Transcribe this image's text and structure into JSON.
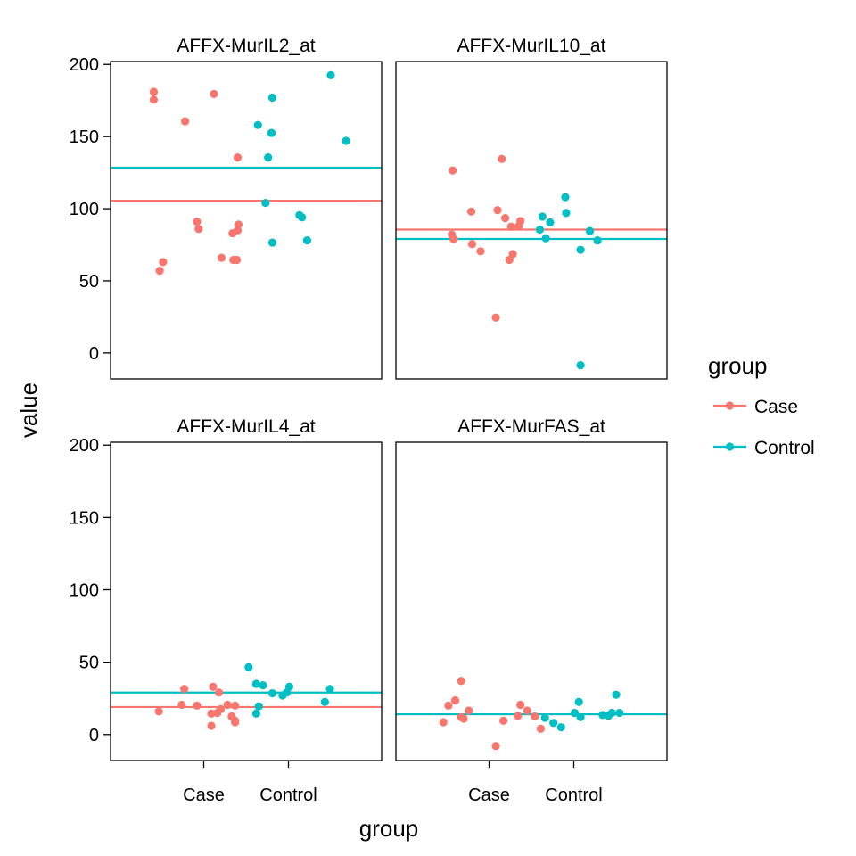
{
  "chart_data": {
    "type": "scatter",
    "xlabel": "group",
    "ylabel": "value",
    "x_categories": [
      "Case",
      "Control"
    ],
    "yticks": [
      0,
      50,
      100,
      150,
      200
    ],
    "ylim": [
      -18,
      202
    ],
    "legend": {
      "title": "group",
      "placement": "right",
      "entries": [
        {
          "name": "Case",
          "color": "#F8766D"
        },
        {
          "name": "Control",
          "color": "#00BFC4"
        }
      ]
    },
    "panels": [
      {
        "title": "AFFX-MurIL2_at",
        "hlines": {
          "Case": 105.5,
          "Control": 128.5
        },
        "points": [
          {
            "group": "Case",
            "x": 0.91,
            "y": 181
          },
          {
            "group": "Case",
            "x": 0.91,
            "y": 175.5
          },
          {
            "group": "Case",
            "x": 0.98,
            "y": 57
          },
          {
            "group": "Case",
            "x": 1.02,
            "y": 63
          },
          {
            "group": "Case",
            "x": 1.28,
            "y": 160.5
          },
          {
            "group": "Case",
            "x": 1.42,
            "y": 91
          },
          {
            "group": "Case",
            "x": 1.44,
            "y": 86
          },
          {
            "group": "Case",
            "x": 1.62,
            "y": 179.5
          },
          {
            "group": "Case",
            "x": 1.71,
            "y": 66
          },
          {
            "group": "Case",
            "x": 1.84,
            "y": 83
          },
          {
            "group": "Case",
            "x": 1.85,
            "y": 64.5
          },
          {
            "group": "Case",
            "x": 1.89,
            "y": 64.5
          },
          {
            "group": "Case",
            "x": 1.9,
            "y": 85
          },
          {
            "group": "Case",
            "x": 1.9,
            "y": 135.5
          },
          {
            "group": "Case",
            "x": 1.91,
            "y": 89
          },
          {
            "group": "Control",
            "x": 2.14,
            "y": 158
          },
          {
            "group": "Control",
            "x": 2.23,
            "y": 104
          },
          {
            "group": "Control",
            "x": 2.26,
            "y": 135.5
          },
          {
            "group": "Control",
            "x": 2.3,
            "y": 152.5
          },
          {
            "group": "Control",
            "x": 2.31,
            "y": 177
          },
          {
            "group": "Control",
            "x": 2.31,
            "y": 76.5
          },
          {
            "group": "Control",
            "x": 2.63,
            "y": 95.5
          },
          {
            "group": "Control",
            "x": 2.66,
            "y": 94
          },
          {
            "group": "Control",
            "x": 2.72,
            "y": 78
          },
          {
            "group": "Control",
            "x": 3.0,
            "y": 192.5
          },
          {
            "group": "Control",
            "x": 3.18,
            "y": 147
          }
        ]
      },
      {
        "title": "AFFX-MurIL10_at",
        "hlines": {
          "Case": 85.5,
          "Control": 79
        },
        "points": [
          {
            "group": "Case",
            "x": 1.06,
            "y": 82
          },
          {
            "group": "Case",
            "x": 1.07,
            "y": 126.5
          },
          {
            "group": "Case",
            "x": 1.08,
            "y": 79
          },
          {
            "group": "Case",
            "x": 1.29,
            "y": 98
          },
          {
            "group": "Case",
            "x": 1.3,
            "y": 75.5
          },
          {
            "group": "Case",
            "x": 1.4,
            "y": 70.5
          },
          {
            "group": "Case",
            "x": 1.58,
            "y": 24.5
          },
          {
            "group": "Case",
            "x": 1.6,
            "y": 99
          },
          {
            "group": "Case",
            "x": 1.65,
            "y": 134.5
          },
          {
            "group": "Case",
            "x": 1.69,
            "y": 93.5
          },
          {
            "group": "Case",
            "x": 1.74,
            "y": 64.5
          },
          {
            "group": "Case",
            "x": 1.76,
            "y": 87.5
          },
          {
            "group": "Case",
            "x": 1.78,
            "y": 68.5
          },
          {
            "group": "Case",
            "x": 1.85,
            "y": 88
          },
          {
            "group": "Case",
            "x": 1.87,
            "y": 91.5
          },
          {
            "group": "Control",
            "x": 2.1,
            "y": 85.5
          },
          {
            "group": "Control",
            "x": 2.13,
            "y": 94.5
          },
          {
            "group": "Control",
            "x": 2.17,
            "y": 79.5
          },
          {
            "group": "Control",
            "x": 2.22,
            "y": 90.5
          },
          {
            "group": "Control",
            "x": 2.4,
            "y": 108
          },
          {
            "group": "Control",
            "x": 2.41,
            "y": 97
          },
          {
            "group": "Control",
            "x": 2.58,
            "y": 71.5
          },
          {
            "group": "Control",
            "x": 2.58,
            "y": -8.5
          },
          {
            "group": "Control",
            "x": 2.69,
            "y": 84.5
          },
          {
            "group": "Control",
            "x": 2.78,
            "y": 78
          }
        ]
      },
      {
        "title": "AFFX-MurIL4_at",
        "hlines": {
          "Case": 19,
          "Control": 29
        },
        "points": [
          {
            "group": "Case",
            "x": 0.97,
            "y": 16
          },
          {
            "group": "Case",
            "x": 1.24,
            "y": 20.5
          },
          {
            "group": "Case",
            "x": 1.27,
            "y": 31.5
          },
          {
            "group": "Case",
            "x": 1.42,
            "y": 20
          },
          {
            "group": "Case",
            "x": 1.59,
            "y": 14.5
          },
          {
            "group": "Case",
            "x": 1.59,
            "y": 6
          },
          {
            "group": "Case",
            "x": 1.61,
            "y": 33
          },
          {
            "group": "Case",
            "x": 1.66,
            "y": 15
          },
          {
            "group": "Case",
            "x": 1.68,
            "y": 29
          },
          {
            "group": "Case",
            "x": 1.7,
            "y": 17.5
          },
          {
            "group": "Case",
            "x": 1.78,
            "y": 20.5
          },
          {
            "group": "Case",
            "x": 1.83,
            "y": 12.5
          },
          {
            "group": "Case",
            "x": 1.87,
            "y": 9.5
          },
          {
            "group": "Case",
            "x": 1.87,
            "y": 20
          },
          {
            "group": "Case",
            "x": 1.87,
            "y": 8.5
          },
          {
            "group": "Control",
            "x": 2.03,
            "y": 46.5
          },
          {
            "group": "Control",
            "x": 2.12,
            "y": 35
          },
          {
            "group": "Control",
            "x": 2.12,
            "y": 14.5
          },
          {
            "group": "Control",
            "x": 2.15,
            "y": 19.5
          },
          {
            "group": "Control",
            "x": 2.2,
            "y": 34
          },
          {
            "group": "Control",
            "x": 2.31,
            "y": 28.5
          },
          {
            "group": "Control",
            "x": 2.43,
            "y": 27
          },
          {
            "group": "Control",
            "x": 2.48,
            "y": 29
          },
          {
            "group": "Control",
            "x": 2.51,
            "y": 33
          },
          {
            "group": "Control",
            "x": 2.93,
            "y": 22.5
          },
          {
            "group": "Control",
            "x": 2.99,
            "y": 31.5
          }
        ]
      },
      {
        "title": "AFFX-MurFAS_at",
        "hlines": {
          "Case": 14,
          "Control": 14
        },
        "points": [
          {
            "group": "Case",
            "x": 0.96,
            "y": 8.5
          },
          {
            "group": "Case",
            "x": 1.02,
            "y": 20
          },
          {
            "group": "Case",
            "x": 1.1,
            "y": 23.5
          },
          {
            "group": "Case",
            "x": 1.17,
            "y": 12
          },
          {
            "group": "Case",
            "x": 1.17,
            "y": 37
          },
          {
            "group": "Case",
            "x": 1.2,
            "y": 11
          },
          {
            "group": "Case",
            "x": 1.26,
            "y": 16.5
          },
          {
            "group": "Case",
            "x": 1.58,
            "y": -8
          },
          {
            "group": "Case",
            "x": 1.67,
            "y": 9.5
          },
          {
            "group": "Case",
            "x": 1.84,
            "y": 13
          },
          {
            "group": "Case",
            "x": 1.87,
            "y": 20.5
          },
          {
            "group": "Case",
            "x": 1.95,
            "y": 16.5
          },
          {
            "group": "Case",
            "x": 2.04,
            "y": 12.5
          },
          {
            "group": "Case",
            "x": 2.11,
            "y": 4
          },
          {
            "group": "Control",
            "x": 2.16,
            "y": 11.5
          },
          {
            "group": "Control",
            "x": 2.26,
            "y": 8
          },
          {
            "group": "Control",
            "x": 2.35,
            "y": 5
          },
          {
            "group": "Control",
            "x": 2.51,
            "y": 15
          },
          {
            "group": "Control",
            "x": 2.56,
            "y": 22.5
          },
          {
            "group": "Control",
            "x": 2.58,
            "y": 12
          },
          {
            "group": "Control",
            "x": 2.84,
            "y": 13.5
          },
          {
            "group": "Control",
            "x": 2.91,
            "y": 13
          },
          {
            "group": "Control",
            "x": 2.95,
            "y": 15
          },
          {
            "group": "Control",
            "x": 3.0,
            "y": 27.5
          },
          {
            "group": "Control",
            "x": 3.04,
            "y": 15
          }
        ]
      }
    ]
  }
}
